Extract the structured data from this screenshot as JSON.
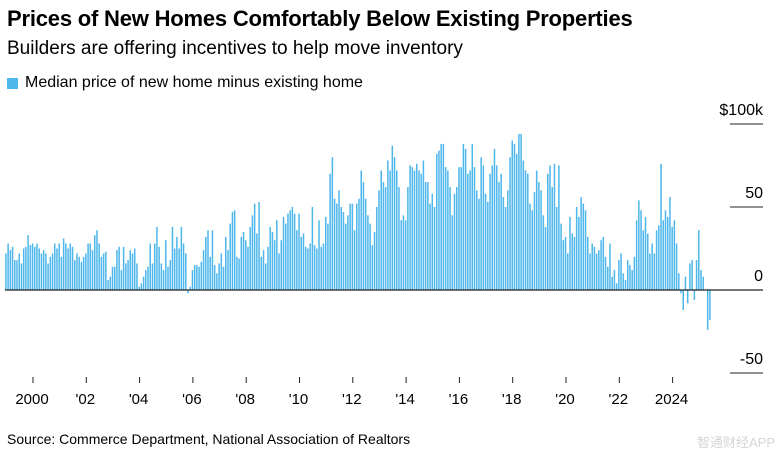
{
  "title": "Prices of New Homes Comfortably Below Existing Properties",
  "subtitle": "Builders are offering incentives to help move inventory",
  "source": "Source: Commerce Department, National Association of Realtors",
  "watermark": "智通财经APP",
  "colors": {
    "bar": "#4db6ea",
    "zero_line": "#222222"
  },
  "chart_data": {
    "type": "bar",
    "title": "Prices of New Homes Comfortably Below Existing Properties",
    "legend": [
      "Median price of new home minus existing home"
    ],
    "legend_position": "top-left",
    "frequency": "monthly",
    "start": "1999-01",
    "ylabel": "",
    "ylim": [
      -55,
      100
    ],
    "y_ticks": [
      {
        "v": 100,
        "label": "$100k"
      },
      {
        "v": 50,
        "label": "50"
      },
      {
        "v": 0,
        "label": "0"
      },
      {
        "v": -50,
        "label": "-50"
      }
    ],
    "x_ticks": [
      {
        "v": 2000,
        "label": "2000"
      },
      {
        "v": 2002,
        "label": "'02"
      },
      {
        "v": 2004,
        "label": "'04"
      },
      {
        "v": 2006,
        "label": "'06"
      },
      {
        "v": 2008,
        "label": "'08"
      },
      {
        "v": 2010,
        "label": "'10"
      },
      {
        "v": 2012,
        "label": "'12"
      },
      {
        "v": 2014,
        "label": "'14"
      },
      {
        "v": 2016,
        "label": "'16"
      },
      {
        "v": 2018,
        "label": "'18"
      },
      {
        "v": 2020,
        "label": "'20"
      },
      {
        "v": 2022,
        "label": "'22"
      },
      {
        "v": 2024,
        "label": "2024"
      }
    ],
    "values": [
      22,
      28,
      24,
      26,
      18,
      18,
      22,
      16,
      25,
      26,
      33,
      27,
      28,
      26,
      28,
      25,
      22,
      24,
      22,
      16,
      20,
      22,
      28,
      25,
      28,
      20,
      31,
      28,
      25,
      28,
      26,
      18,
      22,
      20,
      17,
      20,
      22,
      28,
      28,
      24,
      33,
      36,
      28,
      20,
      22,
      23,
      6,
      8,
      14,
      14,
      24,
      26,
      12,
      26,
      16,
      18,
      24,
      22,
      25,
      16,
      2,
      4,
      8,
      12,
      14,
      28,
      16,
      28,
      38,
      26,
      16,
      12,
      30,
      14,
      18,
      38,
      25,
      32,
      25,
      38,
      28,
      22,
      -2,
      2,
      12,
      15,
      15,
      14,
      17,
      24,
      32,
      36,
      20,
      36,
      15,
      10,
      16,
      22,
      14,
      32,
      24,
      40,
      47,
      48,
      20,
      19,
      32,
      35,
      30,
      26,
      38,
      45,
      52,
      34,
      53,
      20,
      24,
      16,
      26,
      38,
      35,
      30,
      42,
      22,
      30,
      44,
      40,
      46,
      48,
      50,
      46,
      36,
      46,
      32,
      34,
      26,
      25,
      28,
      50,
      27,
      25,
      42,
      26,
      28,
      44,
      40,
      70,
      80,
      55,
      52,
      60,
      50,
      47,
      40,
      45,
      52,
      52,
      36,
      52,
      55,
      72,
      65,
      55,
      45,
      40,
      27,
      35,
      50,
      60,
      72,
      65,
      62,
      78,
      72,
      87,
      80,
      72,
      62,
      42,
      45,
      42,
      62,
      75,
      74,
      72,
      76,
      72,
      70,
      78,
      65,
      65,
      52,
      58,
      50,
      82,
      84,
      88,
      88,
      74,
      72,
      62,
      45,
      58,
      62,
      74,
      74,
      88,
      85,
      70,
      72,
      88,
      74,
      60,
      55,
      80,
      75,
      58,
      53,
      70,
      75,
      85,
      75,
      65,
      70,
      56,
      50,
      60,
      80,
      90,
      88,
      82,
      94,
      94,
      78,
      72,
      70,
      52,
      48,
      59,
      72,
      65,
      60,
      45,
      38,
      70,
      75,
      62,
      76,
      50,
      75,
      40,
      30,
      32,
      22,
      44,
      34,
      32,
      50,
      44,
      56,
      52,
      48,
      32,
      22,
      28,
      26,
      22,
      24,
      30,
      32,
      20,
      14,
      28,
      8,
      12,
      4,
      18,
      22,
      10,
      6,
      18,
      15,
      12,
      20,
      42,
      54,
      48,
      36,
      44,
      34,
      22,
      28,
      22,
      36,
      39,
      76,
      42,
      48,
      44,
      56,
      38,
      42,
      28,
      10,
      -2,
      -12,
      8,
      -8,
      16,
      18,
      -6,
      18,
      36,
      12,
      8,
      0,
      -24,
      -18
    ]
  }
}
